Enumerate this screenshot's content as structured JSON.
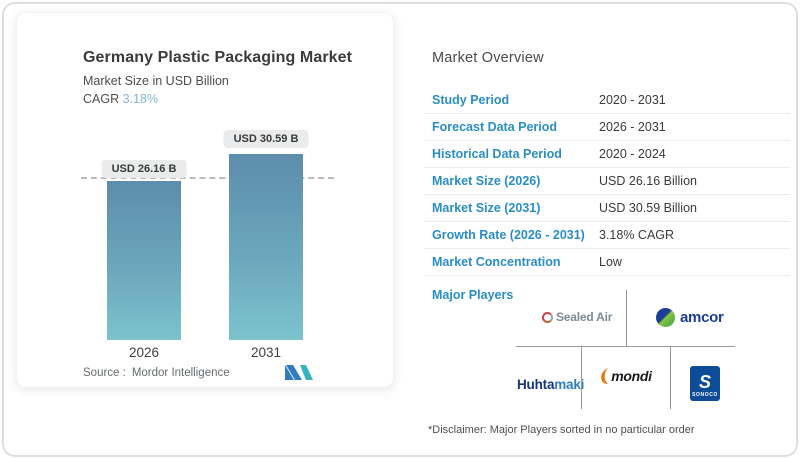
{
  "chart_card": {
    "title": "Germany Plastic Packaging Market",
    "subtitle": "Market Size in USD Billion",
    "cagr_label": "CAGR",
    "cagr_value": "3.18%",
    "source_label": "Source :",
    "source_value": "Mordor Intelligence"
  },
  "chart_data": {
    "type": "bar",
    "categories": [
      "2026",
      "2031"
    ],
    "values": [
      26.16,
      30.59
    ],
    "bar_labels": [
      "USD 26.16 B",
      "USD 30.59 B"
    ],
    "title": "Germany Plastic Packaging Market",
    "ylabel": "Market Size in USD Billion",
    "ylim": [
      0,
      33
    ],
    "grid": "single dashed reference line at y=26.16",
    "legend": "none",
    "bar_color_gradient": [
      "#5d8dac",
      "#7cc3cd"
    ]
  },
  "overview": {
    "heading": "Market Overview",
    "rows": [
      {
        "label": "Study Period",
        "value": "2020 - 2031"
      },
      {
        "label": "Forecast Data Period",
        "value": "2026 - 2031"
      },
      {
        "label": "Historical Data Period",
        "value": "2020 - 2024"
      },
      {
        "label": "Market Size (2026)",
        "value": "USD 26.16 Billion"
      },
      {
        "label": "Market Size (2031)",
        "value": "USD 30.59 Billion"
      },
      {
        "label": "Growth Rate (2026 - 2031)",
        "value": "3.18% CAGR"
      },
      {
        "label": "Market Concentration",
        "value": "Low"
      }
    ],
    "major_players": {
      "label": "Major Players",
      "sealed_air": {
        "text": "Sealed Air"
      },
      "amcor": {
        "text": "amcor"
      },
      "huhtamaki": {
        "text_bold": "Huhta",
        "text_light": "maki"
      },
      "mondi": {
        "text": "mondi"
      },
      "sonoco": {
        "monogram": "S",
        "text": "SONOCO"
      }
    },
    "disclaimer": "*Disclaimer: Major Players sorted in no particular order"
  },
  "colors": {
    "accent_blue_label": "#2a8ec5",
    "cagr_value_blue": "#85b4d2",
    "bar_top": "#5d8dac",
    "bar_bottom": "#7cc3cd",
    "pill_bg": "#e9ebec",
    "dashed_line": "#b7bbbd",
    "divider": "#ececec",
    "player_grid_line": "#949a9e",
    "amcor_blue": "#1b3f94",
    "amcor_green": "#2a9d4e",
    "sealed_air_gray": "#7e8a94",
    "sealed_air_red": "#cf4044",
    "huhtamaki_navy": "#15357f",
    "huhtamaki_blue": "#2f7cc0",
    "mondi_orange": "#e8740c",
    "sonoco_navy": "#0d4c96",
    "mordor_logo_blue": "#2f7dc0",
    "mordor_logo_teal": "#35b3c3"
  }
}
